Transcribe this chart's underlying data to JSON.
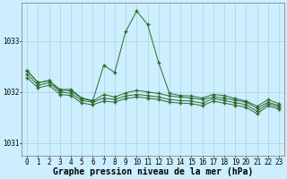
{
  "xlabel": "Graphe pression niveau de la mer (hPa)",
  "ylim": [
    1030.75,
    1033.75
  ],
  "xlim": [
    -0.5,
    23.5
  ],
  "yticks": [
    1031,
    1032,
    1033
  ],
  "xticks": [
    0,
    1,
    2,
    3,
    4,
    5,
    6,
    7,
    8,
    9,
    10,
    11,
    12,
    13,
    14,
    15,
    16,
    17,
    18,
    19,
    20,
    21,
    22,
    23
  ],
  "bg_color": "#cceeff",
  "grid_color": "#aad4d4",
  "line_color": "#2d6a2d",
  "font_family": "monospace",
  "xlabel_fontsize": 7,
  "tick_fontsize": 5.5,
  "series1": [
    1032.42,
    1032.18,
    1032.22,
    1032.05,
    1032.05,
    1031.88,
    1031.83,
    1032.52,
    1032.38,
    1033.18,
    1033.58,
    1033.32,
    1032.58,
    1031.97,
    1031.93,
    1031.92,
    1031.88,
    1031.95,
    1031.93,
    1031.87,
    1031.82,
    1031.72,
    1031.85,
    1031.77
  ],
  "series2": [
    1032.42,
    1032.18,
    1032.22,
    1032.03,
    1032.02,
    1031.87,
    1031.82,
    1031.95,
    1031.9,
    1031.98,
    1032.03,
    1032.0,
    1031.97,
    1031.92,
    1031.9,
    1031.88,
    1031.85,
    1031.9,
    1031.88,
    1031.84,
    1031.8,
    1031.68,
    1031.8,
    1031.73
  ],
  "series3": [
    1032.35,
    1032.13,
    1032.18,
    1032.0,
    1031.97,
    1031.83,
    1031.8,
    1031.88,
    1031.85,
    1031.92,
    1031.95,
    1031.93,
    1031.9,
    1031.85,
    1031.83,
    1031.82,
    1031.78,
    1031.87,
    1031.83,
    1031.79,
    1031.75,
    1031.62,
    1031.77,
    1031.7
  ],
  "series4": [
    1032.28,
    1032.08,
    1032.13,
    1031.95,
    1031.93,
    1031.78,
    1031.75,
    1031.82,
    1031.8,
    1031.87,
    1031.9,
    1031.88,
    1031.85,
    1031.8,
    1031.78,
    1031.77,
    1031.73,
    1031.82,
    1031.78,
    1031.74,
    1031.7,
    1031.57,
    1031.73,
    1031.66
  ]
}
